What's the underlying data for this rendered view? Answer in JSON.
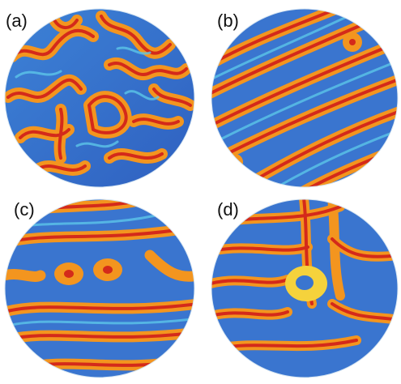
{
  "panels": [
    {
      "label": "(a)",
      "pattern": "labyrinth"
    },
    {
      "label": "(b)",
      "pattern": "diagonal-stripes"
    },
    {
      "label": "(c)",
      "pattern": "horizontal-stripes-with-loops"
    },
    {
      "label": "(d)",
      "pattern": "curved-stripes-with-defect"
    }
  ],
  "colors": {
    "background": "#ffffff",
    "deep_blue": "#2a4fb0",
    "mid_blue": "#3d82d6",
    "cyan": "#5cc6e8",
    "yellow": "#f5d23c",
    "orange": "#f3951f",
    "red": "#d42a1a"
  }
}
